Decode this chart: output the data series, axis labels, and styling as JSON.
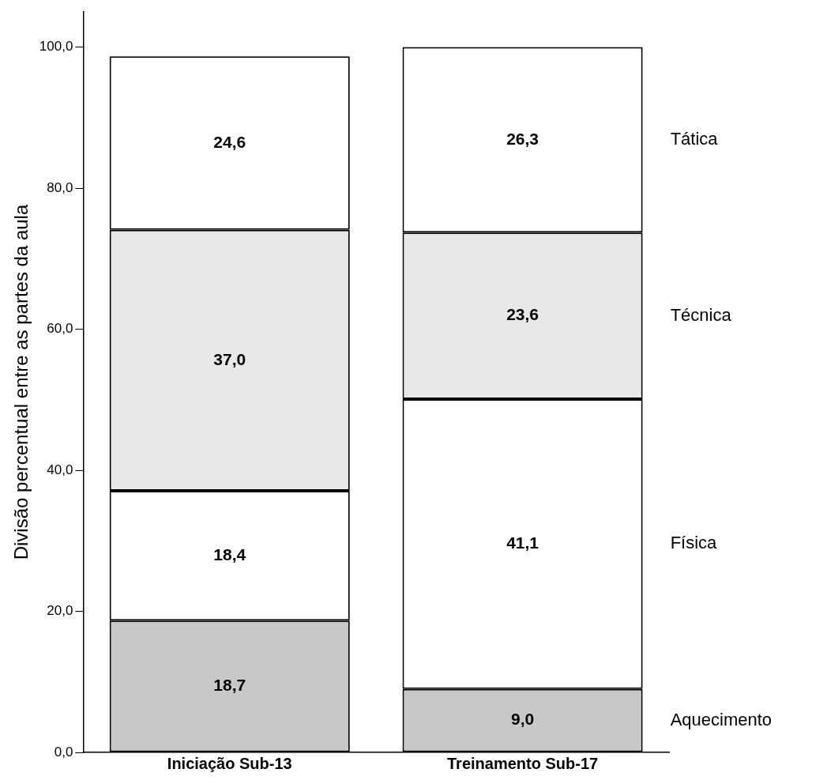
{
  "chart_data": {
    "type": "bar",
    "stacked": true,
    "ylabel": "Divisão percentual entre as partes da aula",
    "categories": [
      "Iniciação Sub-13",
      "Treinamento Sub-17"
    ],
    "series": [
      {
        "name": "Aquecimento",
        "color": "#c8c8c8",
        "values": [
          18.7,
          9.0
        ],
        "value_labels": [
          "18,7",
          "9,0"
        ]
      },
      {
        "name": "Física",
        "color": "#ffffff",
        "values": [
          18.4,
          41.1
        ],
        "value_labels": [
          "18,4",
          "41,1"
        ]
      },
      {
        "name": "Técnica",
        "color": "#e8e8e8",
        "values": [
          37.0,
          23.6
        ],
        "value_labels": [
          "37,0",
          "23,6"
        ]
      },
      {
        "name": "Tática",
        "color": "#ffffff",
        "values": [
          24.6,
          26.3
        ],
        "value_labels": [
          "24,6",
          "26,3"
        ]
      }
    ],
    "ylim": [
      0,
      105
    ],
    "yticks": [
      {
        "value": 0,
        "label": "0,0"
      },
      {
        "value": 20,
        "label": "20,0"
      },
      {
        "value": 40,
        "label": "40,0"
      },
      {
        "value": 60,
        "label": "60,0"
      },
      {
        "value": 80,
        "label": "80,0"
      },
      {
        "value": 100,
        "label": "100,0"
      }
    ],
    "grid": false
  }
}
